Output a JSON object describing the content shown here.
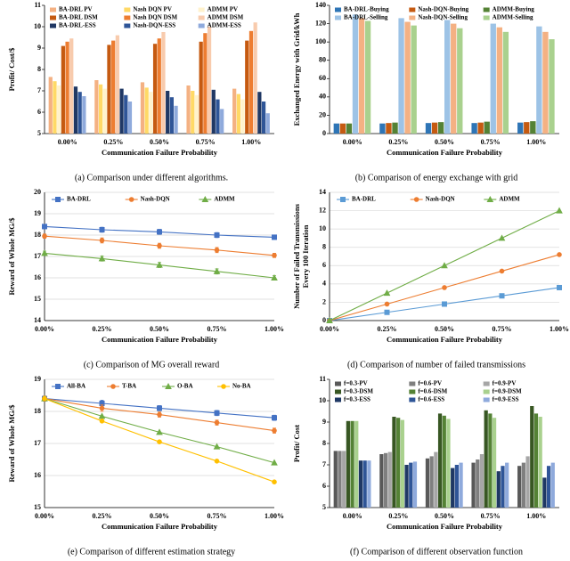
{
  "chart_data": [
    {
      "type": "bar",
      "caption": "(a) Comparison under different algorithms.",
      "xlabel": "Communication Failure Probability",
      "ylabel": "Profit/ Cost/$",
      "categories": [
        "0.00%",
        "0.25%",
        "0.50%",
        "0.75%",
        "1.00%"
      ],
      "ylim": [
        5,
        11
      ],
      "yticks": [
        5,
        6,
        7,
        8,
        9,
        10,
        11
      ],
      "grid": false,
      "series": [
        {
          "name": "BA-DRL PV",
          "color": "#f4b183",
          "values": [
            7.65,
            7.5,
            7.4,
            7.25,
            7.1
          ]
        },
        {
          "name": "Nash DQN PV",
          "color": "#ffd966",
          "values": [
            7.45,
            7.3,
            7.15,
            7.0,
            6.85
          ]
        },
        {
          "name": "ADMM PV",
          "color": "#fff2cc",
          "values": [
            7.25,
            7.1,
            6.95,
            6.8,
            6.6
          ]
        },
        {
          "name": "BA-DRL DSM",
          "color": "#c55a11",
          "values": [
            9.1,
            9.15,
            9.2,
            9.3,
            9.35
          ]
        },
        {
          "name": "Nash DQN DSM",
          "color": "#ed7d31",
          "values": [
            9.3,
            9.35,
            9.45,
            9.7,
            9.8
          ]
        },
        {
          "name": "ADMM DSM",
          "color": "#f8cbad",
          "values": [
            9.45,
            9.6,
            9.75,
            10.0,
            10.2
          ]
        },
        {
          "name": "BA-DRL-ESS",
          "color": "#203864",
          "values": [
            7.2,
            7.1,
            7.0,
            7.05,
            6.95
          ]
        },
        {
          "name": "Nash-DQN-ESS",
          "color": "#2f5597",
          "values": [
            6.95,
            6.8,
            6.7,
            6.6,
            6.5
          ]
        },
        {
          "name": "ADMM-ESS",
          "color": "#8faadc",
          "values": [
            6.75,
            6.5,
            6.3,
            6.15,
            5.95
          ]
        }
      ]
    },
    {
      "type": "bar",
      "caption": "(b) Comparison of energy exchange with grid",
      "xlabel": "Communication Failure Probability",
      "ylabel": "Exchanged Energy with Grid/kWh",
      "categories": [
        "0.00%",
        "0.25%",
        "0.50%",
        "0.75%",
        "1.00%"
      ],
      "ylim": [
        0,
        140
      ],
      "yticks": [
        0,
        20,
        40,
        60,
        80,
        100,
        120,
        140
      ],
      "grid": false,
      "series": [
        {
          "name": "BA-DRL-Buying",
          "color": "#2e75b6",
          "values": [
            11,
            11,
            11.5,
            11.5,
            12
          ]
        },
        {
          "name": "Nash-DQN-Buying",
          "color": "#c55a11",
          "values": [
            11,
            11.5,
            12,
            12,
            12.5
          ]
        },
        {
          "name": "ADMM-Buying",
          "color": "#548235",
          "values": [
            11,
            12,
            12.5,
            13,
            13.5
          ]
        },
        {
          "name": "BA-DRL-Selling",
          "color": "#9dc3e6",
          "values": [
            130,
            126,
            124,
            120,
            117
          ]
        },
        {
          "name": "Nash-DQN-Selling",
          "color": "#f4b183",
          "values": [
            126,
            122,
            120,
            116,
            111
          ]
        },
        {
          "name": "ADMM-Selling",
          "color": "#a9d18e",
          "values": [
            123,
            118,
            115,
            111,
            103
          ]
        }
      ]
    },
    {
      "type": "line",
      "caption": "(c) Comparison of MG overall reward",
      "xlabel": "Communication Failure Probability",
      "ylabel": "Reward of Whole MG/$",
      "categories": [
        "0.00%",
        "0.25%",
        "0.50%",
        "0.75%",
        "1.00%"
      ],
      "ylim": [
        14,
        20
      ],
      "yticks": [
        14,
        15,
        16,
        17,
        18,
        19,
        20
      ],
      "grid": true,
      "series": [
        {
          "name": "BA-DRL",
          "color": "#4472c4",
          "marker": "square",
          "values": [
            18.4,
            18.25,
            18.15,
            18.0,
            17.9
          ],
          "errors": [
            0.1,
            0.12,
            0.12,
            0.12,
            0.1
          ]
        },
        {
          "name": "Nash-DQN",
          "color": "#ed7d31",
          "marker": "circle",
          "values": [
            17.95,
            17.75,
            17.5,
            17.3,
            17.05
          ],
          "errors": [
            0.1,
            0.12,
            0.12,
            0.12,
            0.1
          ]
        },
        {
          "name": "ADMM",
          "color": "#70ad47",
          "marker": "triangle",
          "values": [
            17.15,
            16.9,
            16.6,
            16.3,
            16.0
          ],
          "errors": [
            0.1,
            0.12,
            0.12,
            0.12,
            0.1
          ]
        }
      ]
    },
    {
      "type": "line",
      "caption": "(d) Comparison of number of failed transmissions",
      "xlabel": "Communication Failure Probability",
      "ylabel": [
        "Number of Failed Transmissions",
        "Every 100 Iteration"
      ],
      "categories": [
        "0.00%",
        "0.25%",
        "0.50%",
        "0.75%",
        "1.00%"
      ],
      "ylim": [
        0,
        14
      ],
      "yticks": [
        0,
        2,
        4,
        6,
        8,
        10,
        12,
        14
      ],
      "grid": true,
      "series": [
        {
          "name": "BA-DRL",
          "color": "#5b9bd5",
          "marker": "square",
          "values": [
            0,
            0.9,
            1.8,
            2.7,
            3.6
          ]
        },
        {
          "name": "Nash-DQN",
          "color": "#ed7d31",
          "marker": "circle",
          "values": [
            0,
            1.8,
            3.6,
            5.4,
            7.2
          ]
        },
        {
          "name": "ADMM",
          "color": "#70ad47",
          "marker": "triangle",
          "values": [
            0,
            3,
            6,
            9,
            12
          ]
        }
      ]
    },
    {
      "type": "line",
      "caption": "(e) Comparison of different estimation strategy",
      "xlabel": "Communication Failure Probability",
      "ylabel": "Reward of Whole MG/$",
      "categories": [
        "0.00%",
        "0.25%",
        "0.50%",
        "0.75%",
        "1.00%"
      ],
      "ylim": [
        15,
        19
      ],
      "yticks": [
        15,
        16,
        17,
        18,
        19
      ],
      "grid": true,
      "series": [
        {
          "name": "All-BA",
          "color": "#4472c4",
          "marker": "square",
          "values": [
            18.4,
            18.25,
            18.1,
            17.95,
            17.8
          ],
          "errors": [
            0.08,
            0.1,
            0.08,
            0.08,
            0.08
          ]
        },
        {
          "name": "T-BA",
          "color": "#ed7d31",
          "marker": "circle",
          "values": [
            18.4,
            18.1,
            17.9,
            17.65,
            17.4
          ],
          "errors": [
            0.08,
            0.1,
            0.08,
            0.08,
            0.08
          ]
        },
        {
          "name": "O-BA",
          "color": "#70ad47",
          "marker": "triangle",
          "values": [
            18.4,
            17.85,
            17.35,
            16.9,
            16.4
          ]
        },
        {
          "name": "No-BA",
          "color": "#ffc000",
          "marker": "circle",
          "values": [
            18.4,
            17.7,
            17.05,
            16.45,
            15.8
          ]
        }
      ]
    },
    {
      "type": "bar",
      "caption": "(f) Comparison of different observation function",
      "xlabel": "Communication Failure Probability",
      "ylabel": "Profit/ Cost",
      "categories": [
        "0.00%",
        "0.25%",
        "0.50%",
        "0.75%",
        "1.00%"
      ],
      "ylim": [
        5,
        11
      ],
      "yticks": [
        5,
        6,
        7,
        8,
        9,
        10,
        11
      ],
      "grid": false,
      "series": [
        {
          "name": "f=0.3-PV",
          "color": "#595959",
          "values": [
            7.65,
            7.5,
            7.3,
            7.1,
            6.95
          ]
        },
        {
          "name": "f=0.6-PV",
          "color": "#7f7f7f",
          "values": [
            7.65,
            7.55,
            7.4,
            7.25,
            7.1
          ]
        },
        {
          "name": "f=0.9-PV",
          "color": "#a6a6a6",
          "values": [
            7.65,
            7.6,
            7.6,
            7.5,
            7.4
          ]
        },
        {
          "name": "f=0.3-DSM",
          "color": "#385723",
          "values": [
            9.05,
            9.25,
            9.4,
            9.55,
            9.75
          ]
        },
        {
          "name": "f=0.6-DSM",
          "color": "#548235",
          "values": [
            9.05,
            9.2,
            9.3,
            9.4,
            9.4
          ]
        },
        {
          "name": "f=0.9-DSM",
          "color": "#a9d18e",
          "values": [
            9.05,
            9.1,
            9.15,
            9.2,
            9.25
          ]
        },
        {
          "name": "f=0.3-ESS",
          "color": "#1f3864",
          "values": [
            7.2,
            7.0,
            6.85,
            6.7,
            6.4
          ]
        },
        {
          "name": "f=0.6-ESS",
          "color": "#2f5597",
          "values": [
            7.2,
            7.1,
            7.0,
            6.95,
            6.95
          ]
        },
        {
          "name": "f=0.9-ESS",
          "color": "#8faadc",
          "values": [
            7.2,
            7.15,
            7.1,
            7.1,
            7.1
          ]
        }
      ]
    }
  ]
}
